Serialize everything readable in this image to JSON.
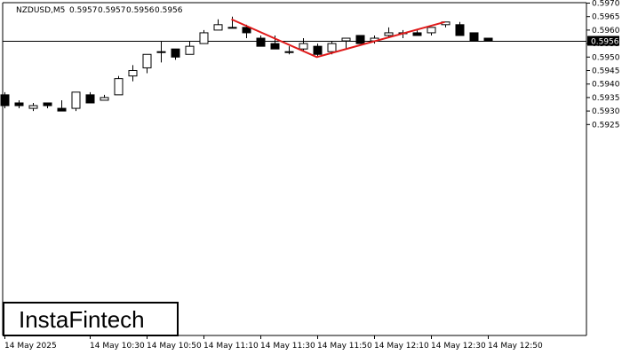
{
  "header": {
    "symbol_label": "NZDUSD,M5",
    "ohlc": [
      "0.5957",
      "0.5957",
      "0.5956",
      "0.5956"
    ]
  },
  "logo": {
    "text": "InstaFintech"
  },
  "current_price": {
    "label": "0.5956",
    "value": 0.5956
  },
  "colors": {
    "bull_fill": "#ffffff",
    "bear_fill": "#000000",
    "candle_stroke": "#000000",
    "pattern_line": "#e01b1b",
    "axis": "#000000",
    "background": "#ffffff"
  },
  "chart_data": {
    "type": "candlestick",
    "title": "NZDUSD,M5",
    "ylim": [
      0.5919,
      0.597
    ],
    "y_ticks": [
      "0.5925",
      "0.5930",
      "0.5935",
      "0.5940",
      "0.5945",
      "0.5950",
      "0.5955",
      "0.5960",
      "0.5965",
      "0.5970"
    ],
    "x_ticks": [
      "14 May 2025",
      "14 May 10:30",
      "14 May 10:50",
      "14 May 11:10",
      "14 May 11:30",
      "14 May 11:50",
      "14 May 12:10",
      "14 May 12:30",
      "14 May 12:50"
    ],
    "x_tick_bars": [
      0,
      6,
      10,
      14,
      18,
      22,
      26,
      30,
      34
    ],
    "horizontal_line": 0.5956,
    "candles": [
      {
        "o": 0.5936,
        "h": 0.5937,
        "l": 0.5931,
        "c": 0.5932
      },
      {
        "o": 0.5933,
        "h": 0.5934,
        "l": 0.5931,
        "c": 0.5932
      },
      {
        "o": 0.5931,
        "h": 0.5933,
        "l": 0.593,
        "c": 0.5932
      },
      {
        "o": 0.5933,
        "h": 0.5933,
        "l": 0.5931,
        "c": 0.5932
      },
      {
        "o": 0.5931,
        "h": 0.5934,
        "l": 0.593,
        "c": 0.593
      },
      {
        "o": 0.5931,
        "h": 0.5937,
        "l": 0.593,
        "c": 0.5937
      },
      {
        "o": 0.5936,
        "h": 0.5937,
        "l": 0.5933,
        "c": 0.5933
      },
      {
        "o": 0.5934,
        "h": 0.5936,
        "l": 0.5934,
        "c": 0.5935
      },
      {
        "o": 0.5936,
        "h": 0.5943,
        "l": 0.5936,
        "c": 0.5942
      },
      {
        "o": 0.5943,
        "h": 0.5947,
        "l": 0.5941,
        "c": 0.5945
      },
      {
        "o": 0.5946,
        "h": 0.5951,
        "l": 0.5944,
        "c": 0.5951
      },
      {
        "o": 0.5952,
        "h": 0.5956,
        "l": 0.5948,
        "c": 0.5952
      },
      {
        "o": 0.5953,
        "h": 0.5953,
        "l": 0.5949,
        "c": 0.595
      },
      {
        "o": 0.5951,
        "h": 0.5956,
        "l": 0.5951,
        "c": 0.5954
      },
      {
        "o": 0.5955,
        "h": 0.596,
        "l": 0.5955,
        "c": 0.5959
      },
      {
        "o": 0.596,
        "h": 0.5964,
        "l": 0.596,
        "c": 0.5962
      },
      {
        "o": 0.5961,
        "h": 0.5965,
        "l": 0.5961,
        "c": 0.5961
      },
      {
        "o": 0.5961,
        "h": 0.5962,
        "l": 0.5957,
        "c": 0.5959
      },
      {
        "o": 0.5957,
        "h": 0.5958,
        "l": 0.5954,
        "c": 0.5954
      },
      {
        "o": 0.5955,
        "h": 0.5958,
        "l": 0.5953,
        "c": 0.5953
      },
      {
        "o": 0.5952,
        "h": 0.5954,
        "l": 0.5951,
        "c": 0.5952
      },
      {
        "o": 0.5953,
        "h": 0.5957,
        "l": 0.5952,
        "c": 0.5955
      },
      {
        "o": 0.5954,
        "h": 0.5955,
        "l": 0.595,
        "c": 0.5951
      },
      {
        "o": 0.5952,
        "h": 0.5956,
        "l": 0.5951,
        "c": 0.5955
      },
      {
        "o": 0.5956,
        "h": 0.5957,
        "l": 0.5953,
        "c": 0.5957
      },
      {
        "o": 0.5958,
        "h": 0.5958,
        "l": 0.5955,
        "c": 0.5955
      },
      {
        "o": 0.5956,
        "h": 0.5958,
        "l": 0.5955,
        "c": 0.5957
      },
      {
        "o": 0.5958,
        "h": 0.5961,
        "l": 0.5957,
        "c": 0.5959
      },
      {
        "o": 0.5959,
        "h": 0.596,
        "l": 0.5957,
        "c": 0.5959
      },
      {
        "o": 0.5959,
        "h": 0.596,
        "l": 0.5958,
        "c": 0.5958
      },
      {
        "o": 0.5959,
        "h": 0.5961,
        "l": 0.5958,
        "c": 0.5961
      },
      {
        "o": 0.5962,
        "h": 0.5963,
        "l": 0.5961,
        "c": 0.5963
      },
      {
        "o": 0.5962,
        "h": 0.5963,
        "l": 0.5958,
        "c": 0.5958
      },
      {
        "o": 0.5959,
        "h": 0.5959,
        "l": 0.5956,
        "c": 0.5956
      },
      {
        "o": 0.5957,
        "h": 0.5957,
        "l": 0.5956,
        "c": 0.5956
      }
    ],
    "pattern_polyline": [
      {
        "bar": 16,
        "price": 0.5964
      },
      {
        "bar": 22,
        "price": 0.595
      },
      {
        "bar": 31,
        "price": 0.5963
      }
    ],
    "grid": false
  }
}
